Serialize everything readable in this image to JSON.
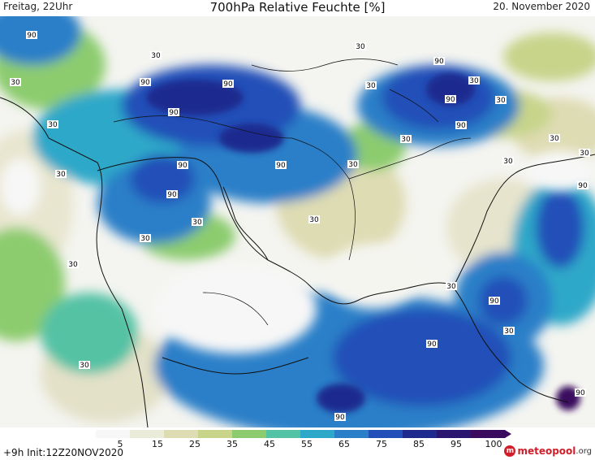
{
  "header": {
    "left": "Freitag, 22Uhr",
    "title": "700hPa Relative Feuchte [%]",
    "right": "20. November 2020"
  },
  "map": {
    "contour_labels": [
      "90",
      "30"
    ],
    "colors": {
      "level_5": "#f7f7f7",
      "level_15": "#ebebd9",
      "level_25": "#dedcb3",
      "level_35": "#c7d48a",
      "level_45": "#8ccc6e",
      "level_55": "#54c2a4",
      "level_65": "#2ea8c9",
      "level_75": "#2a7fc8",
      "level_85": "#2250b8",
      "level_95": "#1f2a8f",
      "level_100": "#3a0a5e",
      "coast": "#111111"
    }
  },
  "scale": {
    "labels": [
      "5",
      "15",
      "25",
      "35",
      "45",
      "55",
      "65",
      "75",
      "85",
      "95",
      "100"
    ],
    "colors": [
      "#f7f7f7",
      "#ebebd9",
      "#dedcb3",
      "#c7d48a",
      "#8ccc6e",
      "#54c2a4",
      "#2ea8c9",
      "#2a7fc8",
      "#2250b8",
      "#1f2a8f",
      "#2a1570",
      "#3a0a5e"
    ]
  },
  "footer": {
    "run_info": "+9h  Init:12Z20NOV2020",
    "brand_icon": "m",
    "brand_a": "meteopool",
    "brand_b": ".org"
  }
}
